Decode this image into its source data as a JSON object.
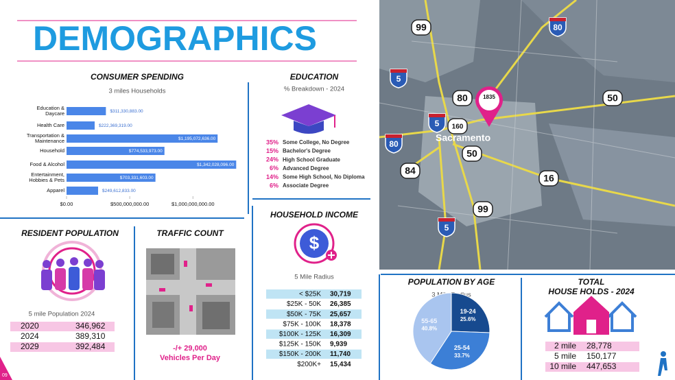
{
  "header": {
    "title": "DEMOGRAPHICS"
  },
  "chart_data": [
    {
      "type": "bar",
      "orientation": "horizontal",
      "title": "CONSUMER SPENDING",
      "subtitle": "3 miles Households",
      "categories": [
        "Education &\nDaycare",
        "Health Care",
        "Transportation &\nMaintenance",
        "Household",
        "Food & Alcohol",
        "Entertainment,\nHobbies & Pets",
        "Apparel"
      ],
      "values": [
        311330883,
        222369319,
        1195072636,
        774533973,
        1342028096,
        703331603,
        249612833
      ],
      "value_labels": [
        "$311,330,883.00",
        "$222,369,319.00",
        "$1,195,072,636.00",
        "$774,533,973.00",
        "$1,342,028,096.00",
        "$703,331,603.00",
        "$249,612,833.00"
      ],
      "color": "#4a86e8",
      "xlim": [
        0,
        1400000000
      ],
      "xticks": [
        {
          "value": 0,
          "label": "$0.00"
        },
        {
          "value": 500000000,
          "label": "$500,000,000.00"
        },
        {
          "value": 1000000000,
          "label": "$1,000,000,000.00"
        }
      ]
    },
    {
      "type": "pie",
      "title": "POPULATION BY AGE",
      "subtitle": "3 Mile Radius",
      "categories": [
        "19-24",
        "25-54",
        "55-65"
      ],
      "values": [
        25.6,
        33.7,
        40.8
      ],
      "value_labels": [
        "25.6%",
        "33.7%",
        "40.8%"
      ],
      "colors": [
        "#174a8f",
        "#3c7fd6",
        "#a9c5ef"
      ]
    }
  ],
  "education": {
    "title": "EDUCATION",
    "subtitle": "% Breakdown - 2024",
    "items": [
      {
        "percent": "35%",
        "label": "Some College, No Degree"
      },
      {
        "percent": "15%",
        "label": "Bachelor's Degree"
      },
      {
        "percent": "24%",
        "label": "High School Graduate"
      },
      {
        "percent": "6%",
        "label": "Advanced Degree"
      },
      {
        "percent": "14%",
        "label": "Some High School, No Diploma"
      },
      {
        "percent": "6%",
        "label": "Associate Degree"
      }
    ]
  },
  "household_income": {
    "title": "HOUSEHOLD INCOME",
    "subtitle": "5 Mile Radius",
    "rows": [
      [
        "< $25K",
        "30,719"
      ],
      [
        "$25K - 50K",
        "26,385"
      ],
      [
        "$50K - 75K",
        "25,657"
      ],
      [
        "$75K - 100K",
        "18,378"
      ],
      [
        "$100K - 125K",
        "16,309"
      ],
      [
        "$125K - 150K",
        "9,939"
      ],
      [
        "$150K - 200K",
        "11,740"
      ],
      [
        "$200K+",
        "15,434"
      ]
    ]
  },
  "resident_population": {
    "title": "RESIDENT POPULATION",
    "subtitle": "5 mile Population 2024",
    "rows": [
      [
        "2020",
        "346,962"
      ],
      [
        "2024",
        "389,310"
      ],
      [
        "2029",
        "392,484"
      ]
    ]
  },
  "traffic_count": {
    "title": "TRAFFIC COUNT",
    "count": "-/+ 29,000",
    "unit": "Vehicles Per Day"
  },
  "households": {
    "title": [
      "TOTAL",
      "HOUSE HOLDS - 2024"
    ],
    "rows": [
      [
        "2 mile",
        "28,778"
      ],
      [
        "5 mile",
        "150,177"
      ],
      [
        "10 mile",
        "447,653"
      ]
    ]
  },
  "map": {
    "city": "Sacramento",
    "pin": "1835",
    "shields": [
      "99",
      "80",
      "5",
      "80",
      "50",
      "5",
      "160",
      "80",
      "50",
      "84",
      "16",
      "99",
      "5"
    ]
  },
  "page_number": "09"
}
